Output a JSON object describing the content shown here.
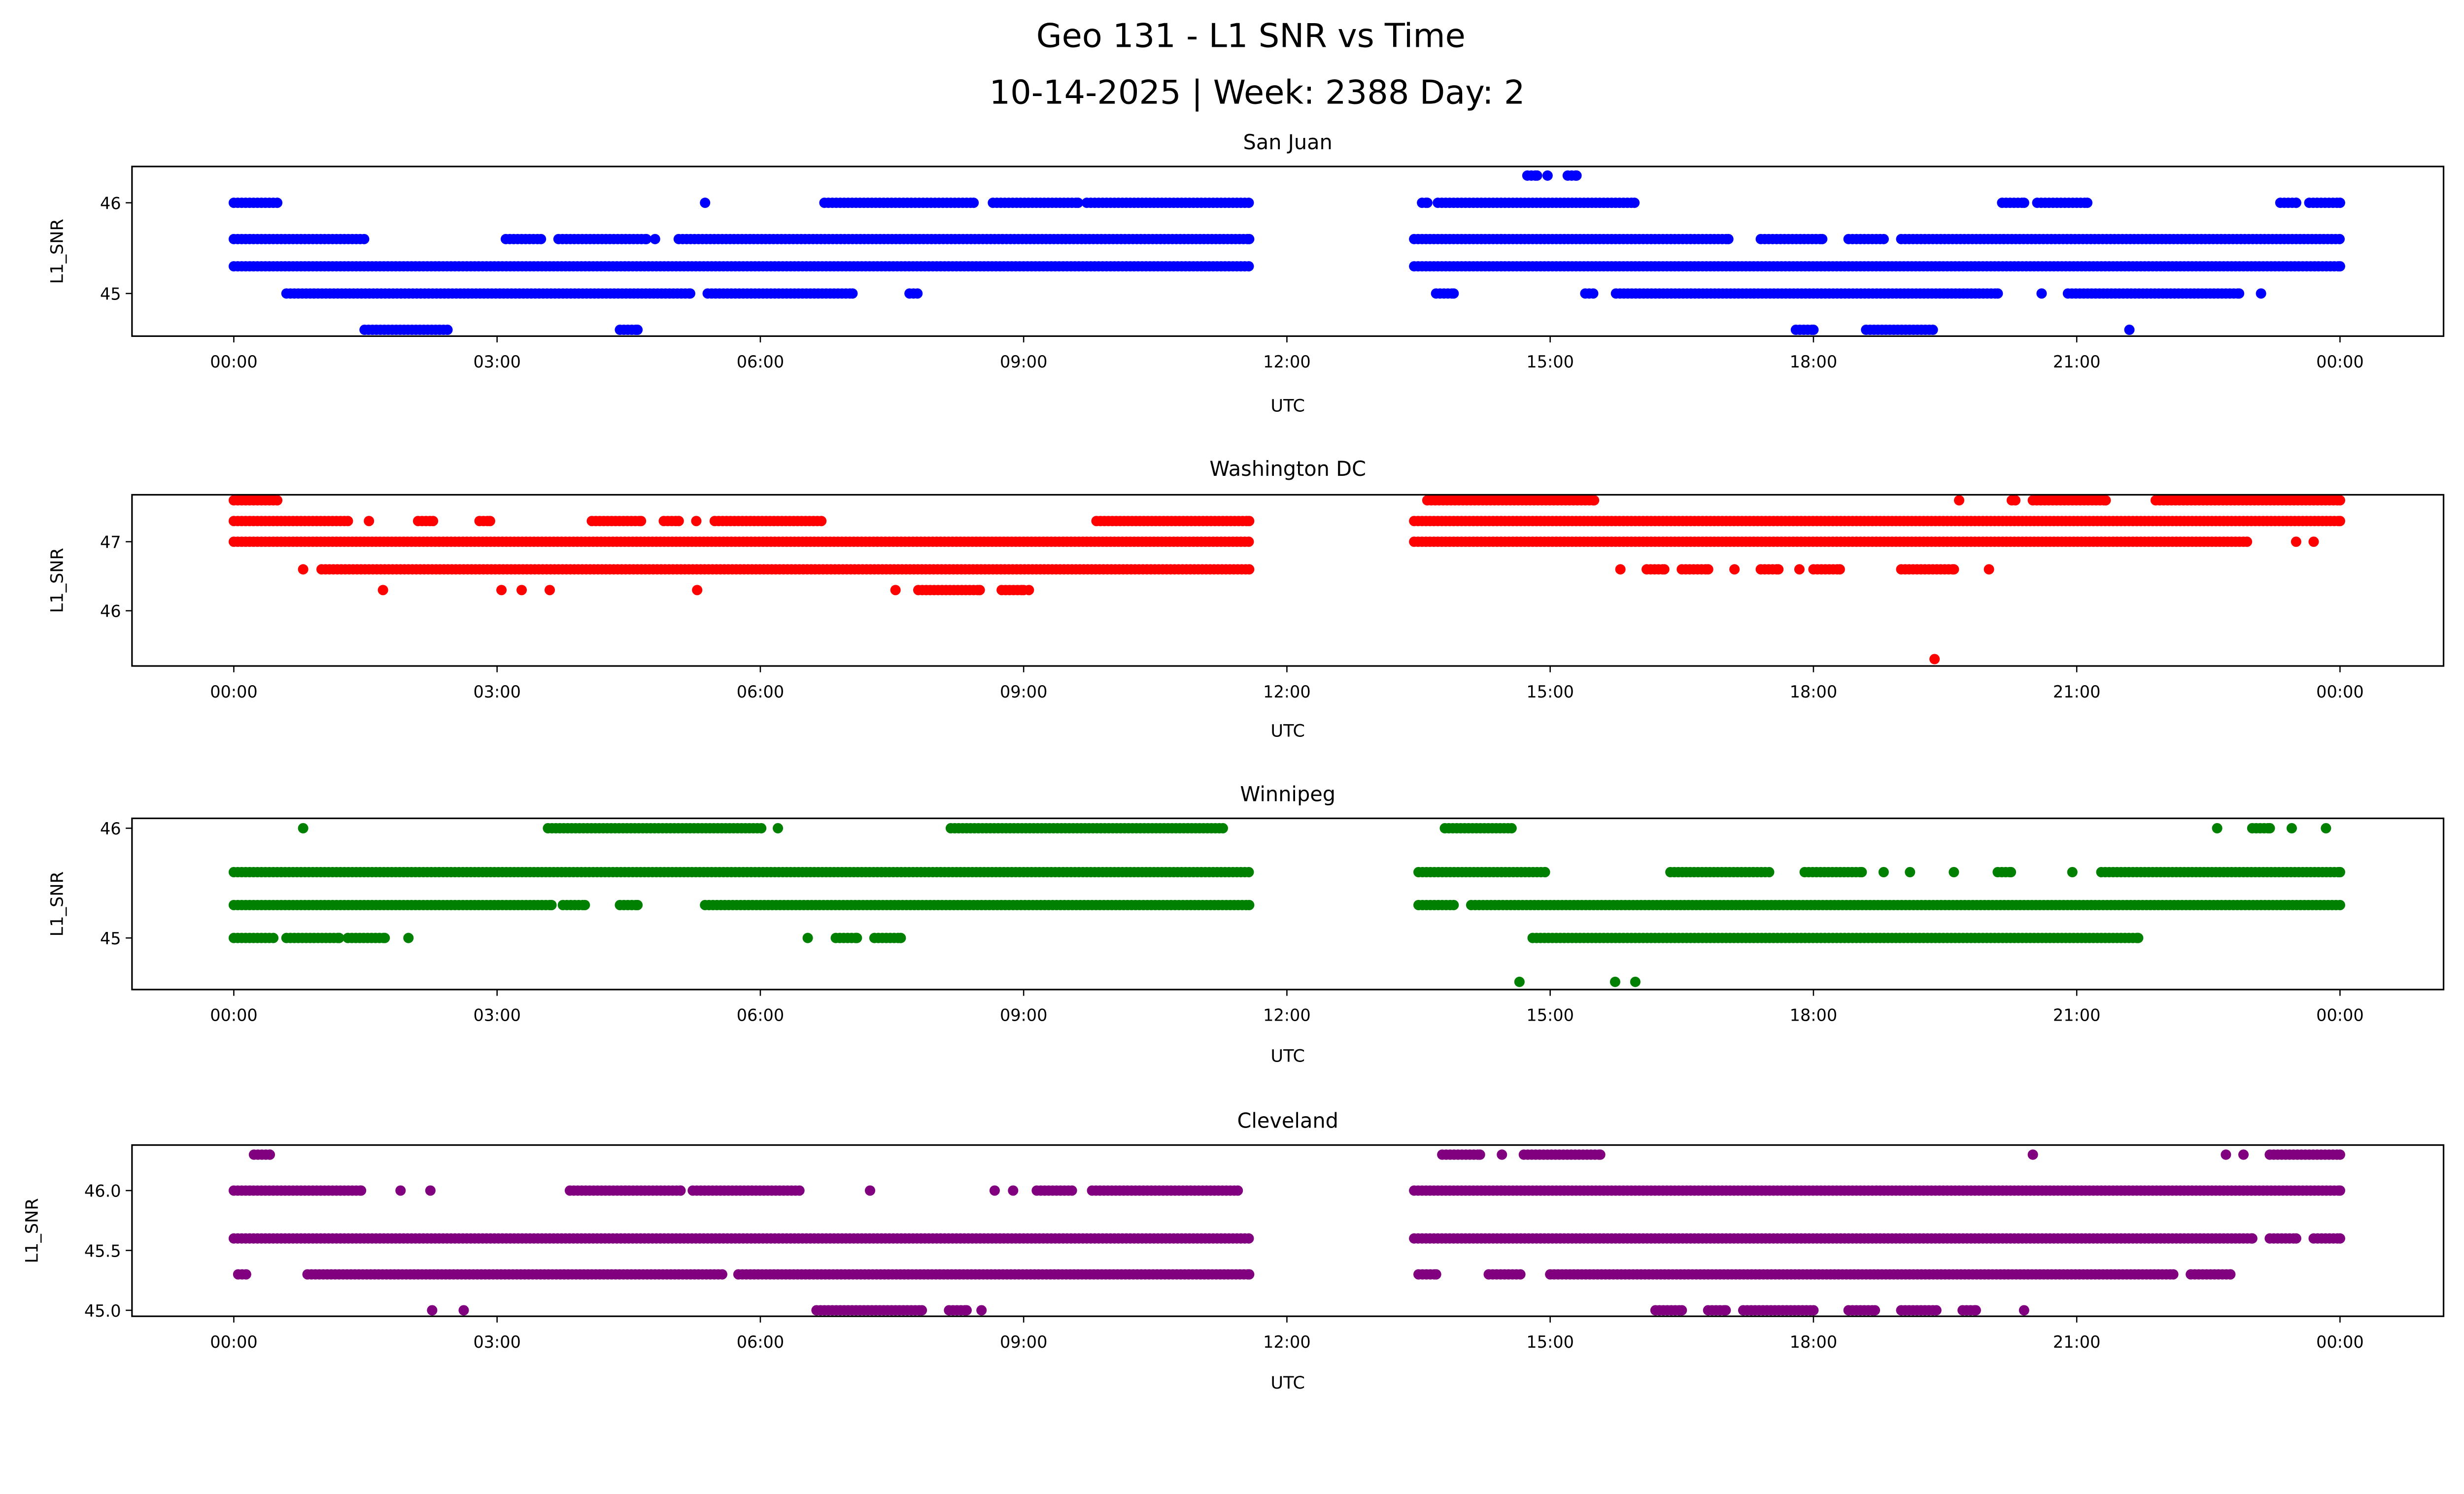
{
  "title_line1": "Geo 131 - L1 SNR vs Time",
  "title_line2": "10-14-2025 | Week: 2388 Day: 2",
  "chart_data": [
    {
      "type": "scatter",
      "title": "San Juan",
      "xlabel": "UTC",
      "ylabel": "L1_SNR",
      "color": "#0000ff",
      "xlim_hours": [
        -1.16,
        25.18
      ],
      "xticks": [
        0,
        3,
        6,
        9,
        12,
        15,
        18,
        21,
        24
      ],
      "xtick_labels": [
        "00:00",
        "03:00",
        "06:00",
        "09:00",
        "12:00",
        "15:00",
        "18:00",
        "21:00",
        "00:00"
      ],
      "ylim": [
        44.53,
        46.4
      ],
      "yticks": [
        45,
        46
      ],
      "ytick_labels": [
        "45",
        "46"
      ],
      "runs": [
        [
          46.3,
          14.74,
          14.85
        ],
        [
          46.3,
          14.97,
          14.97
        ],
        [
          46.3,
          15.2,
          15.3
        ],
        [
          46.0,
          0,
          0.5
        ],
        [
          46.0,
          5.37,
          5.37
        ],
        [
          46.0,
          6.73,
          8.43
        ],
        [
          46.0,
          8.65,
          9.62
        ],
        [
          46.0,
          9.72,
          11.57
        ],
        [
          46.0,
          13.54,
          13.6
        ],
        [
          46.0,
          13.72,
          15.96
        ],
        [
          46.0,
          20.15,
          20.4
        ],
        [
          46.0,
          20.55,
          21.12
        ],
        [
          46.0,
          23.32,
          23.5
        ],
        [
          46.0,
          23.65,
          24
        ],
        [
          45.6,
          0,
          1.49
        ],
        [
          45.6,
          3.1,
          3.5
        ],
        [
          45.6,
          3.7,
          4.7
        ],
        [
          45.6,
          4.8,
          4.8
        ],
        [
          45.6,
          5.07,
          11.57
        ],
        [
          45.6,
          13.45,
          17.03
        ],
        [
          45.6,
          17.4,
          18.1
        ],
        [
          45.6,
          18.4,
          18.8
        ],
        [
          45.6,
          19.0,
          24
        ],
        [
          45.3,
          0,
          11.57
        ],
        [
          45.3,
          13.45,
          24
        ],
        [
          45.0,
          0.6,
          5.2
        ],
        [
          45.0,
          5.4,
          7.05
        ],
        [
          45.0,
          7.7,
          7.8
        ],
        [
          45.0,
          13.7,
          13.9
        ],
        [
          45.0,
          15.4,
          15.5
        ],
        [
          45.0,
          15.75,
          20.1
        ],
        [
          45.0,
          20.6,
          20.6
        ],
        [
          45.0,
          20.9,
          22.85
        ],
        [
          45.0,
          23.1,
          23.1
        ],
        [
          44.6,
          1.49,
          2.44
        ],
        [
          44.6,
          4.4,
          4.6
        ],
        [
          44.6,
          17.8,
          18.0
        ],
        [
          44.6,
          18.6,
          19.36
        ],
        [
          44.6,
          21.6,
          21.6
        ]
      ]
    },
    {
      "type": "scatter",
      "title": "Washington DC",
      "xlabel": "UTC",
      "ylabel": "L1_SNR",
      "color": "#ff0000",
      "xlim_hours": [
        -1.16,
        25.18
      ],
      "xticks": [
        0,
        3,
        6,
        9,
        12,
        15,
        18,
        21,
        24
      ],
      "xtick_labels": [
        "00:00",
        "03:00",
        "06:00",
        "09:00",
        "12:00",
        "15:00",
        "18:00",
        "21:00",
        "00:00"
      ],
      "ylim": [
        45.2,
        47.68
      ],
      "yticks": [
        46,
        47
      ],
      "ytick_labels": [
        "46",
        "47"
      ],
      "runs": [
        [
          47.6,
          0,
          0.5
        ],
        [
          47.6,
          13.6,
          15.5
        ],
        [
          47.6,
          19.66,
          19.66
        ],
        [
          47.6,
          20.26,
          20.3
        ],
        [
          47.6,
          20.5,
          21.33
        ],
        [
          47.6,
          21.9,
          24
        ],
        [
          47.3,
          0,
          1.3
        ],
        [
          47.3,
          1.54,
          1.54
        ],
        [
          47.3,
          2.1,
          2.27
        ],
        [
          47.3,
          2.8,
          2.92
        ],
        [
          47.3,
          4.08,
          4.64
        ],
        [
          47.3,
          4.9,
          5.07
        ],
        [
          47.3,
          5.27,
          5.27
        ],
        [
          47.3,
          5.48,
          6.7
        ],
        [
          47.3,
          9.83,
          11.57
        ],
        [
          47.3,
          13.45,
          24
        ],
        [
          47.0,
          0,
          11.57
        ],
        [
          47.0,
          13.45,
          22.94
        ],
        [
          47.0,
          23.5,
          23.5
        ],
        [
          47.0,
          23.7,
          23.7
        ],
        [
          46.6,
          0.79,
          0.79
        ],
        [
          46.6,
          1.0,
          11.57
        ],
        [
          46.6,
          15.8,
          15.8
        ],
        [
          46.6,
          16.1,
          16.3
        ],
        [
          46.6,
          16.5,
          16.8
        ],
        [
          46.6,
          17.1,
          17.1
        ],
        [
          46.6,
          17.4,
          17.6
        ],
        [
          46.6,
          17.84,
          17.84
        ],
        [
          46.6,
          18.0,
          18.3
        ],
        [
          46.6,
          19.0,
          19.6
        ],
        [
          46.6,
          20.0,
          20.0
        ],
        [
          46.3,
          1.7,
          1.7
        ],
        [
          46.3,
          3.05,
          3.05
        ],
        [
          46.3,
          3.28,
          3.28
        ],
        [
          46.3,
          3.6,
          3.6
        ],
        [
          46.3,
          5.28,
          5.28
        ],
        [
          46.3,
          7.54,
          7.54
        ],
        [
          46.3,
          7.8,
          8.5
        ],
        [
          46.3,
          8.75,
          9.0
        ],
        [
          46.3,
          9.06,
          9.06
        ],
        [
          45.3,
          19.38,
          19.38
        ]
      ]
    },
    {
      "type": "scatter",
      "title": "Winnipeg",
      "xlabel": "UTC",
      "ylabel": "L1_SNR",
      "color": "#008000",
      "xlim_hours": [
        -1.16,
        25.18
      ],
      "xticks": [
        0,
        3,
        6,
        9,
        12,
        15,
        18,
        21,
        24
      ],
      "xtick_labels": [
        "00:00",
        "03:00",
        "06:00",
        "09:00",
        "12:00",
        "15:00",
        "18:00",
        "21:00",
        "00:00"
      ],
      "ylim": [
        44.53,
        46.09
      ],
      "yticks": [
        45,
        46
      ],
      "ytick_labels": [
        "45",
        "46"
      ],
      "runs": [
        [
          46.0,
          0.79,
          0.79
        ],
        [
          46.0,
          3.58,
          6.02
        ],
        [
          46.0,
          6.2,
          6.2
        ],
        [
          46.0,
          8.17,
          11.27
        ],
        [
          46.0,
          13.8,
          14.56
        ],
        [
          46.0,
          22.6,
          22.6
        ],
        [
          46.0,
          23.0,
          23.2
        ],
        [
          46.0,
          23.45,
          23.45
        ],
        [
          46.0,
          23.84,
          23.84
        ],
        [
          45.6,
          0,
          11.57
        ],
        [
          45.6,
          13.5,
          14.94
        ],
        [
          45.6,
          16.37,
          17.5
        ],
        [
          45.6,
          17.9,
          18.55
        ],
        [
          45.6,
          18.8,
          18.8
        ],
        [
          45.6,
          19.1,
          19.1
        ],
        [
          45.6,
          19.6,
          19.6
        ],
        [
          45.6,
          20.1,
          20.25
        ],
        [
          45.6,
          20.95,
          20.95
        ],
        [
          45.6,
          21.28,
          24
        ],
        [
          45.3,
          0,
          3.62
        ],
        [
          45.3,
          3.75,
          4.0
        ],
        [
          45.3,
          4.4,
          4.6
        ],
        [
          45.3,
          5.37,
          11.57
        ],
        [
          45.3,
          13.5,
          13.9
        ],
        [
          45.3,
          14.1,
          24
        ],
        [
          45.0,
          0,
          0.45
        ],
        [
          45.0,
          0.6,
          1.2
        ],
        [
          45.0,
          1.3,
          1.72
        ],
        [
          45.0,
          1.99,
          1.99
        ],
        [
          45.0,
          6.54,
          6.54
        ],
        [
          45.0,
          6.86,
          7.1
        ],
        [
          45.0,
          7.3,
          7.6
        ],
        [
          45.0,
          14.8,
          21.7
        ],
        [
          44.6,
          14.65,
          14.65
        ],
        [
          44.6,
          15.74,
          15.74
        ],
        [
          44.6,
          15.97,
          15.97
        ]
      ]
    },
    {
      "type": "scatter",
      "title": "Cleveland",
      "xlabel": "UTC",
      "ylabel": "L1_SNR",
      "color": "#800080",
      "xlim_hours": [
        -1.16,
        25.18
      ],
      "xticks": [
        0,
        3,
        6,
        9,
        12,
        15,
        18,
        21,
        24
      ],
      "xtick_labels": [
        "00:00",
        "03:00",
        "06:00",
        "09:00",
        "12:00",
        "15:00",
        "18:00",
        "21:00",
        "00:00"
      ],
      "ylim": [
        44.95,
        46.38
      ],
      "yticks": [
        45.0,
        45.5,
        46.0
      ],
      "ytick_labels": [
        "45.0",
        "45.5",
        "46.0"
      ],
      "runs": [
        [
          46.3,
          0.23,
          0.41
        ],
        [
          46.3,
          13.77,
          14.2
        ],
        [
          46.3,
          14.45,
          14.45
        ],
        [
          46.3,
          14.7,
          15.57
        ],
        [
          46.3,
          20.5,
          20.5
        ],
        [
          46.3,
          22.7,
          22.7
        ],
        [
          46.3,
          22.9,
          22.9
        ],
        [
          46.3,
          23.2,
          24
        ],
        [
          46.0,
          0,
          1.45
        ],
        [
          46.0,
          1.9,
          1.9
        ],
        [
          46.0,
          2.24,
          2.24
        ],
        [
          46.0,
          3.83,
          5.09
        ],
        [
          46.0,
          5.23,
          6.45
        ],
        [
          46.0,
          7.25,
          7.25
        ],
        [
          46.0,
          8.67,
          8.67
        ],
        [
          46.0,
          8.88,
          8.88
        ],
        [
          46.0,
          9.15,
          9.55
        ],
        [
          46.0,
          9.78,
          11.44
        ],
        [
          46.0,
          13.45,
          24
        ],
        [
          45.6,
          0,
          11.57
        ],
        [
          45.6,
          13.45,
          23.0
        ],
        [
          45.6,
          23.2,
          23.5
        ],
        [
          45.6,
          23.7,
          24
        ],
        [
          45.3,
          0.05,
          0.15
        ],
        [
          45.3,
          0.84,
          5.57
        ],
        [
          45.3,
          5.75,
          11.57
        ],
        [
          45.3,
          13.5,
          13.7
        ],
        [
          45.3,
          14.3,
          14.67
        ],
        [
          45.3,
          15.0,
          22.1
        ],
        [
          45.3,
          22.3,
          22.75
        ],
        [
          45.0,
          2.26,
          2.26
        ],
        [
          45.0,
          2.62,
          2.62
        ],
        [
          45.0,
          6.64,
          7.84
        ],
        [
          45.0,
          8.15,
          8.35
        ],
        [
          45.0,
          8.52,
          8.52
        ],
        [
          45.0,
          16.2,
          16.5
        ],
        [
          45.0,
          16.8,
          17.0
        ],
        [
          45.0,
          17.2,
          18.0
        ],
        [
          45.0,
          18.4,
          18.7
        ],
        [
          45.0,
          19.0,
          19.4
        ],
        [
          45.0,
          19.7,
          19.85
        ],
        [
          45.0,
          20.4,
          20.4
        ]
      ]
    }
  ]
}
